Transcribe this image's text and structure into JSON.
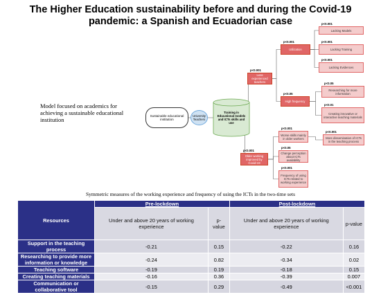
{
  "header": {
    "title": "The Higher Education sustainability before and during the Covid-19 pandemic: a Spanish and Ecuadorian case"
  },
  "model_text": "Model focused on academics for achieving a sustainable educational institution",
  "nodes": [
    {
      "label": "Sustainable educational institution"
    },
    {
      "label": "University Teachers"
    },
    {
      "label": "Training in Educational models and ICTs skills and use"
    },
    {
      "label": "Less experienced teachers",
      "p": "p<0.001"
    },
    {
      "label": "Older working improved by Covid-19",
      "p": "p<0.001"
    },
    {
      "label": "Utilization",
      "p": "p<0.001"
    },
    {
      "label": "High frequency",
      "p": "p<0.05"
    },
    {
      "label": "Lacking Models",
      "p": "p<0.001"
    },
    {
      "label": "Lacking Training",
      "p": "p<0.001"
    },
    {
      "label": "Lacking Evidences",
      "p": "p<0.001"
    },
    {
      "label": "Researching for more information",
      "p": "p<0.05"
    },
    {
      "label": "Creating innovative or interactive teaching materials",
      "p": "p<0.01"
    },
    {
      "label": "Worse skills mainly in older workers",
      "p": "p<0.001"
    },
    {
      "label": "Change perception about ICTs availability",
      "p": "p<0.05"
    },
    {
      "label": "Frequency of using ICTs related to working experience",
      "p": "p<0.001"
    },
    {
      "label": "More dissemination of ICTs in the teaching process",
      "p": "p<0.001"
    }
  ],
  "table": {
    "caption": "Symmetric measures of the working experience and frequency of using the ICTs in the two-time sets",
    "groups": [
      "Pre-lockdown",
      "Post-lockdown"
    ],
    "resources_header": "Resources",
    "columns": [
      "Under and above 20 years of working experience",
      "p-value",
      "Under and above 20 years of working experience",
      "p-value"
    ],
    "rows": [
      [
        "Support in the teaching process",
        "-0.21",
        "0.15",
        "-0.22",
        "0.16"
      ],
      [
        "Researching to provide more information or knowledge",
        "-0.24",
        "0.82",
        "-0.34",
        "0.02"
      ],
      [
        "Teaching software",
        "-0.19",
        "0.19",
        "-0.18",
        "0.15"
      ],
      [
        "Creating teaching materials",
        "-0.16",
        "0.36",
        "-0.39",
        "0.007"
      ],
      [
        "Communication or collaborative tool",
        "-0.15",
        "0.29",
        "-0.49",
        "<0.001"
      ]
    ]
  }
}
